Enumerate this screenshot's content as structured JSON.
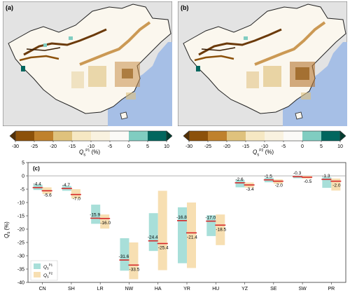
{
  "map_a": {
    "label": "(a)"
  },
  "map_b": {
    "label": "(b)"
  },
  "colorbar_a": {
    "ticks": [
      "-30",
      "-25",
      "-20",
      "-15",
      "-10",
      "-5",
      "0",
      "5",
      "10"
    ],
    "label_symbol": "Q",
    "label_sub": "s",
    "label_sup": "P1",
    "label_unit": "(%)"
  },
  "colorbar_b": {
    "ticks": [
      "-30",
      "-25",
      "-20",
      "-15",
      "-10",
      "-5",
      "0",
      "5",
      "10"
    ],
    "label_symbol": "Q",
    "label_sub": "s",
    "label_sup": "P2",
    "label_unit": "(%)"
  },
  "colorbar_colors": [
    "#543005",
    "#8c510a",
    "#bf812d",
    "#dfc27d",
    "#f6e8c3",
    "#f9f2e0",
    "#fbfaf7",
    "#80cdc1",
    "#01665e",
    "#003c30"
  ],
  "colors": {
    "p1": "#a8dfd9",
    "p2": "#f7dfb2",
    "median": "#d62728",
    "zero_line": "#9a9a9a",
    "ocean": "#a6bfe6",
    "land_other": "#e3e3e3"
  },
  "chart_data": {
    "type": "bar",
    "panel_label": "(c)",
    "ylabel_symbol": "Q",
    "ylabel_sub": "s",
    "ylabel_unit": "(%)",
    "ylim": [
      -40,
      5
    ],
    "yticks": [
      -40,
      -35,
      -30,
      -25,
      -20,
      -15,
      -10,
      -5,
      0,
      5
    ],
    "categories": [
      "CN",
      "SH",
      "LR",
      "NW",
      "HA",
      "YR",
      "HU",
      "YZ",
      "SE",
      "SW",
      "PR"
    ],
    "legend_position": "lower-left",
    "series": [
      {
        "name_symbol": "Q",
        "name_sub": "s",
        "name_sup": "P1",
        "median": [
          -4.4,
          -4.7,
          -15.9,
          -31.6,
          -24.4,
          -16.8,
          -17.0,
          -2.6,
          -1.5,
          -0.3,
          -1.3
        ],
        "low": [
          -5.3,
          -5.6,
          -18.0,
          -35.6,
          -28.2,
          -32.8,
          -22.6,
          -4.3,
          -2.4,
          -0.9,
          -4.5
        ],
        "high": [
          -3.3,
          -3.8,
          -10.8,
          -23.4,
          -14.0,
          -11.8,
          -14.8,
          -1.5,
          -0.7,
          0.0,
          -0.5
        ]
      },
      {
        "name_symbol": "Q",
        "name_sub": "s",
        "name_sup": "P2",
        "median": [
          -5.6,
          -7.0,
          -16.0,
          -33.5,
          -25.4,
          -21.4,
          -18.5,
          -3.4,
          -2.0,
          -0.5,
          -2.0
        ],
        "low": [
          -6.8,
          -8.5,
          -19.8,
          -38.8,
          -35.4,
          -34.6,
          -26.0,
          -4.4,
          -3.0,
          -1.0,
          -5.5
        ],
        "high": [
          -4.3,
          -5.0,
          -14.5,
          -25.0,
          -5.6,
          -10.0,
          -14.5,
          -2.5,
          -1.3,
          0.0,
          -1.0
        ]
      }
    ]
  }
}
